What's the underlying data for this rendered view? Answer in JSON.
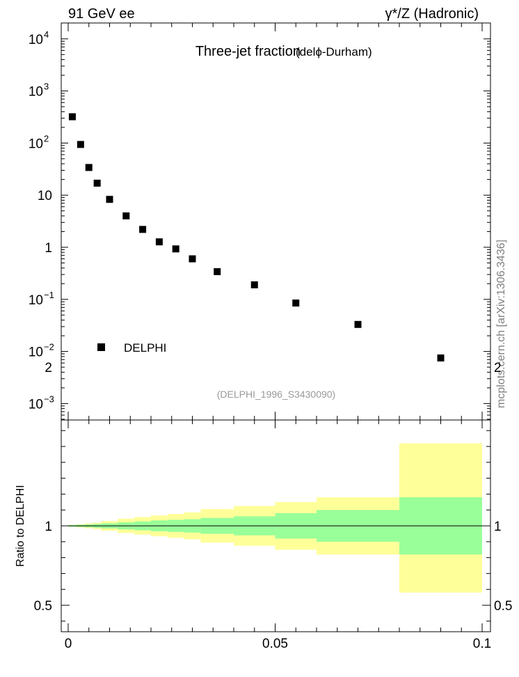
{
  "header": {
    "left_title": "91 GeV ee",
    "right_title": "γ*/Z (Hadronic)"
  },
  "side_label": "mcplots.cern.ch [arXiv:1306.3436]",
  "chart_data": [
    {
      "type": "scatter",
      "title": "Three-jet fraction",
      "subtitle": "(delϕ-Durham)",
      "analysis_label": "(DELPHI_1996_S3430090)",
      "yscale": "log",
      "xlim": [
        0,
        0.1
      ],
      "ylim": [
        0.0005,
        20000
      ],
      "y_tick_labels": [
        {
          "value": 0.001,
          "base": "10",
          "exp": "−3"
        },
        {
          "value": 0.01,
          "base": "10",
          "exp": "−2"
        },
        {
          "value": 0.1,
          "base": "10",
          "exp": "−1"
        },
        {
          "value": 1,
          "base": "1",
          "exp": ""
        },
        {
          "value": 10,
          "base": "10",
          "exp": ""
        },
        {
          "value": 100,
          "base": "10",
          "exp": "2"
        },
        {
          "value": 1000,
          "base": "10",
          "exp": "3"
        },
        {
          "value": 10000,
          "base": "10",
          "exp": "4"
        }
      ],
      "legend": {
        "position": "lower-left",
        "entries": [
          "DELPHI"
        ]
      },
      "series": [
        {
          "name": "DELPHI",
          "color": "#000000",
          "x": [
            0.001,
            0.003,
            0.005,
            0.007,
            0.01,
            0.014,
            0.018,
            0.022,
            0.026,
            0.03,
            0.036,
            0.045,
            0.055,
            0.07,
            0.09
          ],
          "y": [
            320,
            94,
            34,
            17,
            8.3,
            4.0,
            2.2,
            1.27,
            0.93,
            0.6,
            0.34,
            0.19,
            0.085,
            0.033,
            0.0075
          ]
        }
      ]
    },
    {
      "type": "area",
      "ylabel": "Ratio to DELPHI",
      "xlim": [
        0,
        0.1
      ],
      "ylim": [
        0.33,
        2.33
      ],
      "y_tick_labels": [
        {
          "value": 0.5,
          "text": "0.5"
        },
        {
          "value": 1,
          "text": "1"
        },
        {
          "value": 2,
          "text": "2"
        }
      ],
      "x_tick_labels": [
        {
          "value": 0,
          "text": "0"
        },
        {
          "value": 0.05,
          "text": "0.05"
        },
        {
          "value": 0.1,
          "text": "0.1"
        }
      ],
      "bands": {
        "inner_color": "#99ff99",
        "outer_color": "#ffff99",
        "bins": [
          0,
          0.002,
          0.004,
          0.006,
          0.008,
          0.012,
          0.016,
          0.02,
          0.024,
          0.028,
          0.032,
          0.04,
          0.05,
          0.06,
          0.08,
          0.1
        ],
        "inner_low": [
          0.995,
          0.993,
          0.991,
          0.988,
          0.984,
          0.978,
          0.972,
          0.966,
          0.962,
          0.958,
          0.95,
          0.94,
          0.92,
          0.9,
          0.82
        ],
        "inner_high": [
          1.005,
          1.007,
          1.009,
          1.012,
          1.016,
          1.022,
          1.028,
          1.034,
          1.038,
          1.042,
          1.05,
          1.06,
          1.08,
          1.1,
          1.18
        ],
        "outer_low": [
          0.994,
          0.99,
          0.985,
          0.98,
          0.97,
          0.955,
          0.945,
          0.935,
          0.925,
          0.915,
          0.895,
          0.875,
          0.85,
          0.82,
          0.58
        ],
        "outer_high": [
          1.006,
          1.01,
          1.015,
          1.02,
          1.03,
          1.045,
          1.055,
          1.065,
          1.075,
          1.085,
          1.105,
          1.125,
          1.15,
          1.18,
          1.52
        ]
      },
      "reference_line": 1
    }
  ]
}
